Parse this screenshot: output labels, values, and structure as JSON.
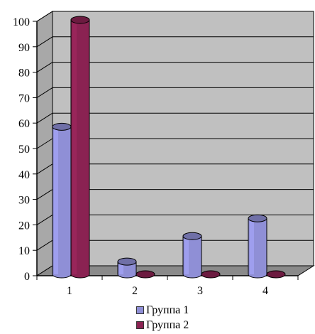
{
  "chart_data": {
    "type": "bar",
    "title": "",
    "xlabel": "",
    "ylabel": "",
    "categories": [
      "1",
      "2",
      "3",
      "4"
    ],
    "series": [
      {
        "name": "Группа 1",
        "values": [
          58,
          5,
          15,
          22
        ],
        "color": "#8f8fd6"
      },
      {
        "name": "Группа 2",
        "values": [
          100,
          0,
          0,
          0
        ],
        "color": "#8a2252"
      }
    ],
    "ylim": [
      0,
      100
    ],
    "yticks": [
      "0",
      "10",
      "20",
      "30",
      "40",
      "50",
      "60",
      "70",
      "80",
      "90",
      "100"
    ],
    "grid": true,
    "three_d": true,
    "legend_position": "bottom",
    "wall_color": "#c0c0c0"
  }
}
